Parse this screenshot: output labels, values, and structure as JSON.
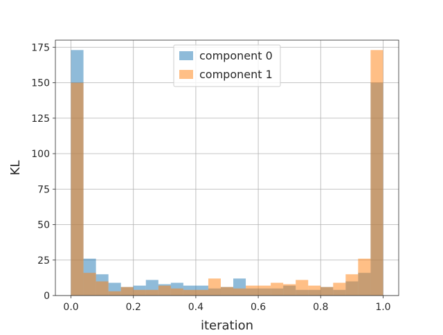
{
  "chart_data": {
    "type": "bar",
    "title": "",
    "xlabel": "iteration",
    "ylabel": "KL",
    "xlim": [
      -0.05,
      1.05
    ],
    "ylim": [
      0,
      180
    ],
    "xticks": [
      0.0,
      0.2,
      0.4,
      0.6,
      0.8,
      1.0
    ],
    "xtick_labels": [
      "0.0",
      "0.2",
      "0.4",
      "0.6",
      "0.8",
      "1.0"
    ],
    "yticks": [
      0,
      25,
      50,
      75,
      100,
      125,
      150,
      175
    ],
    "ytick_labels": [
      "0",
      "25",
      "50",
      "75",
      "100",
      "125",
      "150",
      "175"
    ],
    "grid": true,
    "legend_position": "top-center",
    "bin_edges": [
      0.0,
      0.04,
      0.08,
      0.12,
      0.16,
      0.2,
      0.24,
      0.28,
      0.32,
      0.36,
      0.4,
      0.44,
      0.48,
      0.52,
      0.56,
      0.6,
      0.64,
      0.68,
      0.72,
      0.76,
      0.8,
      0.84,
      0.88,
      0.92,
      0.96,
      1.0
    ],
    "series": [
      {
        "name": "component 0",
        "color": "#1f77b4",
        "values": [
          173,
          26,
          15,
          9,
          6,
          7,
          11,
          8,
          9,
          7,
          7,
          5,
          6,
          12,
          5,
          5,
          5,
          7,
          4,
          4,
          6,
          4,
          10,
          16,
          150
        ]
      },
      {
        "name": "component 1",
        "color": "#ff7f0e",
        "values": [
          150,
          16,
          10,
          3,
          6,
          4,
          4,
          7,
          5,
          4,
          4,
          12,
          6,
          5,
          7,
          7,
          9,
          8,
          11,
          7,
          6,
          9,
          15,
          26,
          173
        ]
      }
    ],
    "bar_alpha": 0.5
  }
}
